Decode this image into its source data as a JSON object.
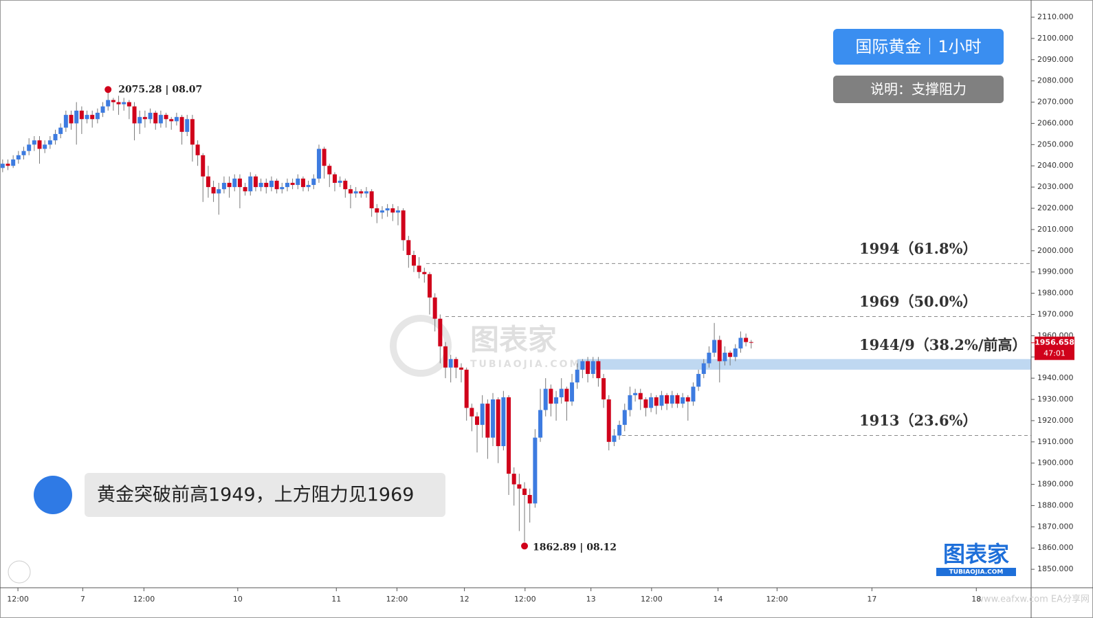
{
  "chart_data": {
    "type": "candlestick",
    "up_color": "#3d7be0",
    "down_color": "#d0021b",
    "title": "国际黄金｜1小时",
    "subtitle": "说明：支撑阻力",
    "comment": "黄金突破前高1949，上方阻力见1969",
    "watermark": "图表家",
    "watermark_sub": "TUBIAOJIA.COM",
    "site": "www.eafxw.com   EA分享网",
    "last_price": {
      "value": 1956.658,
      "label": "1956.658",
      "timer": "47:01"
    },
    "annotations": [
      {
        "text": "2075.28 | 08.07"
      },
      {
        "text": "1862.89 | 08.12"
      }
    ],
    "levels": [
      {
        "value": 1994,
        "label": "1994（61.8%）"
      },
      {
        "value": 1969,
        "label": "1969（50.0%）"
      },
      {
        "value": 1913,
        "label": "1913（23.6%）"
      }
    ],
    "zone": {
      "range": [
        1944,
        1949
      ],
      "label": "1944/9（38.2%/前高）"
    },
    "ylim": [
      1841.3,
      2118.1
    ],
    "yticks": [
      {
        "value": 1850,
        "label": "1850.000"
      },
      {
        "value": 1860,
        "label": "1860.000"
      },
      {
        "value": 1870,
        "label": "1870.000"
      },
      {
        "value": 1880,
        "label": "1880.000"
      },
      {
        "value": 1890,
        "label": "1890.000"
      },
      {
        "value": 1900,
        "label": "1900.000"
      },
      {
        "value": 1910,
        "label": "1910.000"
      },
      {
        "value": 1920,
        "label": "1920.000"
      },
      {
        "value": 1930,
        "label": "1930.000"
      },
      {
        "value": 1940,
        "label": "1940.000"
      },
      {
        "value": 1950,
        "label": "1950.000"
      },
      {
        "value": 1960,
        "label": "1960.000"
      },
      {
        "value": 1970,
        "label": "1970.000"
      },
      {
        "value": 1980,
        "label": "1980.000"
      },
      {
        "value": 1990,
        "label": "1990.000"
      },
      {
        "value": 2000,
        "label": "2000.000"
      },
      {
        "value": 2010,
        "label": "2010.000"
      },
      {
        "value": 2020,
        "label": "2020.000"
      },
      {
        "value": 2030,
        "label": "2030.000"
      },
      {
        "value": 2040,
        "label": "2040.000"
      },
      {
        "value": 2050,
        "label": "2050.000"
      },
      {
        "value": 2060,
        "label": "2060.000"
      },
      {
        "value": 2070,
        "label": "2070.000"
      },
      {
        "value": 2080,
        "label": "2080.000"
      },
      {
        "value": 2090,
        "label": "2090.000"
      },
      {
        "value": 2100,
        "label": "2100.000"
      },
      {
        "value": 2110,
        "label": "2110.000"
      }
    ],
    "xlim": [
      0,
      195.6
    ],
    "xticks": [
      {
        "value": 3.4,
        "label": "12:00"
      },
      {
        "value": 15.7,
        "label": "7"
      },
      {
        "value": 27.3,
        "label": "12:00"
      },
      {
        "value": 45.1,
        "label": "10"
      },
      {
        "value": 63.8,
        "label": "11"
      },
      {
        "value": 75.3,
        "label": "12:00"
      },
      {
        "value": 88.1,
        "label": "12"
      },
      {
        "value": 99.6,
        "label": "12:00"
      },
      {
        "value": 112.1,
        "label": "13"
      },
      {
        "value": 123.6,
        "label": "12:00"
      },
      {
        "value": 136.2,
        "label": "14"
      },
      {
        "value": 147.4,
        "label": "12:00"
      },
      {
        "value": 165.4,
        "label": "17"
      },
      {
        "value": 185.2,
        "label": "18"
      }
    ],
    "ohlc": [
      [
        2039,
        2043,
        2037,
        2041
      ],
      [
        2041,
        2043,
        2038,
        2040
      ],
      [
        2040,
        2045,
        2039,
        2043
      ],
      [
        2043,
        2047,
        2041,
        2045
      ],
      [
        2045,
        2049,
        2043,
        2047
      ],
      [
        2047,
        2053,
        2045,
        2050
      ],
      [
        2050,
        2054,
        2047,
        2052
      ],
      [
        2052,
        2054,
        2041,
        2048
      ],
      [
        2048,
        2052,
        2046,
        2050
      ],
      [
        2050,
        2054,
        2048,
        2052
      ],
      [
        2052,
        2057,
        2050,
        2055
      ],
      [
        2055,
        2060,
        2053,
        2058
      ],
      [
        2058,
        2066,
        2056,
        2064
      ],
      [
        2064,
        2066,
        2057,
        2060
      ],
      [
        2060,
        2070,
        2050,
        2066
      ],
      [
        2066,
        2068,
        2055,
        2062
      ],
      [
        2062,
        2066,
        2060,
        2064
      ],
      [
        2064,
        2066,
        2058,
        2062
      ],
      [
        2062,
        2067,
        2060,
        2065
      ],
      [
        2065,
        2070,
        2063,
        2068
      ],
      [
        2068,
        2075.28,
        2066,
        2071
      ],
      [
        2071,
        2072,
        2066,
        2070
      ],
      [
        2070,
        2073,
        2064,
        2069
      ],
      [
        2069,
        2072,
        2066,
        2070
      ],
      [
        2070,
        2071,
        2062,
        2068
      ],
      [
        2068,
        2070,
        2052,
        2060
      ],
      [
        2060,
        2066,
        2055,
        2063
      ],
      [
        2063,
        2066,
        2058,
        2062
      ],
      [
        2062,
        2067,
        2060,
        2065
      ],
      [
        2065,
        2066,
        2057,
        2060
      ],
      [
        2060,
        2066,
        2058,
        2064
      ],
      [
        2064,
        2065,
        2058,
        2062
      ],
      [
        2062,
        2063,
        2057,
        2061
      ],
      [
        2061,
        2065,
        2059,
        2063
      ],
      [
        2063,
        2064,
        2050,
        2056
      ],
      [
        2056,
        2064,
        2054,
        2062
      ],
      [
        2062,
        2064,
        2042,
        2050
      ],
      [
        2050,
        2052,
        2040,
        2045
      ],
      [
        2045,
        2046,
        2023,
        2035
      ],
      [
        2035,
        2040,
        2025,
        2030
      ],
      [
        2030,
        2033,
        2023,
        2027
      ],
      [
        2027,
        2032,
        2017,
        2029
      ],
      [
        2029,
        2035,
        2027,
        2032
      ],
      [
        2032,
        2035,
        2025,
        2030
      ],
      [
        2030,
        2036,
        2028,
        2034
      ],
      [
        2034,
        2036,
        2020,
        2030
      ],
      [
        2030,
        2032,
        2026,
        2028
      ],
      [
        2028,
        2037,
        2026,
        2035
      ],
      [
        2035,
        2036,
        2028,
        2030
      ],
      [
        2030,
        2034,
        2028,
        2032
      ],
      [
        2032,
        2034,
        2027,
        2030
      ],
      [
        2030,
        2035,
        2028,
        2033
      ],
      [
        2033,
        2034,
        2027,
        2029
      ],
      [
        2029,
        2032,
        2027,
        2030
      ],
      [
        2030,
        2034,
        2028,
        2032
      ],
      [
        2032,
        2034,
        2029,
        2031
      ],
      [
        2031,
        2036,
        2029,
        2034
      ],
      [
        2034,
        2035,
        2028,
        2030
      ],
      [
        2030,
        2033,
        2028,
        2031
      ],
      [
        2031,
        2036,
        2029,
        2034
      ],
      [
        2034,
        2050,
        2032,
        2048
      ],
      [
        2048,
        2049,
        2034,
        2040
      ],
      [
        2040,
        2041,
        2030,
        2036
      ],
      [
        2036,
        2037,
        2028,
        2032
      ],
      [
        2032,
        2035,
        2030,
        2033
      ],
      [
        2033,
        2034,
        2025,
        2029
      ],
      [
        2029,
        2031,
        2020,
        2027
      ],
      [
        2027,
        2030,
        2025,
        2028
      ],
      [
        2028,
        2029,
        2025,
        2027
      ],
      [
        2027,
        2030,
        2025,
        2028
      ],
      [
        2028,
        2029,
        2016,
        2020
      ],
      [
        2020,
        2022,
        2013,
        2018
      ],
      [
        2018,
        2021,
        2015,
        2019
      ],
      [
        2019,
        2022,
        2016,
        2020
      ],
      [
        2020,
        2022,
        2014,
        2018
      ],
      [
        2018,
        2021,
        2012,
        2019
      ],
      [
        2019,
        2020,
        2000,
        2005
      ],
      [
        2005,
        2007,
        1992,
        1998
      ],
      [
        1998,
        2000,
        1990,
        1993
      ],
      [
        1993,
        1997,
        1987,
        1990
      ],
      [
        1990,
        1992,
        1985,
        1989
      ],
      [
        1989,
        1990,
        1970,
        1978
      ],
      [
        1978,
        1980,
        1962,
        1968
      ],
      [
        1968,
        1970,
        1947,
        1955
      ],
      [
        1955,
        1957,
        1940,
        1945
      ],
      [
        1945,
        1951,
        1938,
        1949
      ],
      [
        1949,
        1950,
        1940,
        1945
      ],
      [
        1945,
        1947,
        1938,
        1944
      ],
      [
        1944,
        1945,
        1920,
        1926
      ],
      [
        1926,
        1928,
        1915,
        1922
      ],
      [
        1922,
        1924,
        1905,
        1918
      ],
      [
        1918,
        1932,
        1912,
        1928
      ],
      [
        1928,
        1930,
        1902,
        1912
      ],
      [
        1912,
        1933,
        1908,
        1930
      ],
      [
        1930,
        1931,
        1900,
        1908
      ],
      [
        1908,
        1934,
        1906,
        1931
      ],
      [
        1931,
        1932,
        1885,
        1895
      ],
      [
        1895,
        1898,
        1880,
        1890
      ],
      [
        1890,
        1895,
        1868,
        1888
      ],
      [
        1888,
        1891,
        1862.89,
        1885
      ],
      [
        1885,
        1888,
        1872,
        1881
      ],
      [
        1881,
        1916,
        1879,
        1912
      ],
      [
        1912,
        1935,
        1910,
        1925
      ],
      [
        1925,
        1940,
        1922,
        1935
      ],
      [
        1935,
        1937,
        1922,
        1928
      ],
      [
        1928,
        1934,
        1920,
        1931
      ],
      [
        1931,
        1940,
        1928,
        1935
      ],
      [
        1935,
        1936,
        1920,
        1929
      ],
      [
        1929,
        1942,
        1927,
        1938
      ],
      [
        1938,
        1947,
        1935,
        1944
      ],
      [
        1944,
        1949,
        1940,
        1948
      ],
      [
        1948,
        1950,
        1938,
        1942
      ],
      [
        1942,
        1950,
        1940,
        1948
      ],
      [
        1948,
        1950,
        1936,
        1940
      ],
      [
        1940,
        1942,
        1926,
        1930
      ],
      [
        1930,
        1932,
        1906,
        1910
      ],
      [
        1910,
        1916,
        1908,
        1913
      ],
      [
        1913,
        1920,
        1911,
        1918
      ],
      [
        1918,
        1928,
        1915,
        1925
      ],
      [
        1925,
        1936,
        1922,
        1932
      ],
      [
        1932,
        1935,
        1929,
        1933
      ],
      [
        1933,
        1935,
        1925,
        1930
      ],
      [
        1930,
        1931,
        1922,
        1926
      ],
      [
        1926,
        1933,
        1924,
        1931
      ],
      [
        1931,
        1932,
        1923,
        1927
      ],
      [
        1927,
        1934,
        1925,
        1932
      ],
      [
        1932,
        1933,
        1925,
        1928
      ],
      [
        1928,
        1934,
        1926,
        1932
      ],
      [
        1932,
        1933,
        1926,
        1928
      ],
      [
        1928,
        1933,
        1926,
        1931
      ],
      [
        1931,
        1932,
        1920,
        1929
      ],
      [
        1929,
        1938,
        1927,
        1936
      ],
      [
        1936,
        1944,
        1934,
        1942
      ],
      [
        1942,
        1949,
        1940,
        1947
      ],
      [
        1947,
        1955,
        1945,
        1952
      ],
      [
        1952,
        1966,
        1950,
        1958
      ],
      [
        1958,
        1960,
        1938,
        1948
      ],
      [
        1948,
        1955,
        1946,
        1952
      ],
      [
        1952,
        1953,
        1946,
        1950
      ],
      [
        1950,
        1956,
        1948,
        1954
      ],
      [
        1954,
        1962,
        1952,
        1959
      ],
      [
        1959,
        1961,
        1955,
        1957
      ],
      [
        1957,
        1958,
        1954,
        1956.658
      ]
    ]
  }
}
